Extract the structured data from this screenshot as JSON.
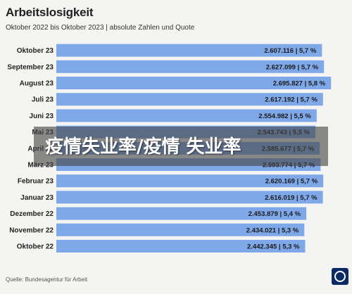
{
  "chart_data": {
    "type": "bar",
    "orientation": "horizontal",
    "title": "Arbeitslosigkeit",
    "subtitle": "Oktober 2022 bis Oktober 2023 | absolute Zahlen und Quote",
    "categories": [
      "Oktober 23",
      "September 23",
      "August 23",
      "Juli 23",
      "Juni 23",
      "Mai 23",
      "April 23",
      "März 23",
      "Februar 23",
      "Januar 23",
      "Dezember 22",
      "November 22",
      "Oktober 22"
    ],
    "values": [
      2607116,
      2627099,
      2695827,
      2617192,
      2554982,
      2543743,
      2585677,
      2593774,
      2620169,
      2616019,
      2453879,
      2434021,
      2442345
    ],
    "data_labels": [
      "2.607.116 | 5,7 %",
      "2.627.099 | 5,7 %",
      "2.695.827 | 5,8 %",
      "2.617.192 | 5,7 %",
      "2.554.982 | 5,5 %",
      "2.543.743 | 5,5 %",
      "2.585.677 | 5,7 %",
      "2.593.774 | 5,7 %",
      "2.620.169 | 5,7 %",
      "2.616.019 | 5,7 %",
      "2.453.879 | 5,4 %",
      "2.434.021 | 5,3 %",
      "2.442.345 | 5,3 %"
    ],
    "xlim": [
      0,
      2750000
    ],
    "grid": false,
    "bar_color": "#7fa8e8",
    "source": "Quelle: Bundesagentur für Arbeit"
  },
  "overlay": {
    "text": "疫情失业率/疫情 失业率"
  },
  "colors": {
    "bar": "#7fa8e8",
    "background": "#f4f4f2",
    "label_text": "#222222",
    "overlay": "rgba(70,70,70,0.62)"
  }
}
